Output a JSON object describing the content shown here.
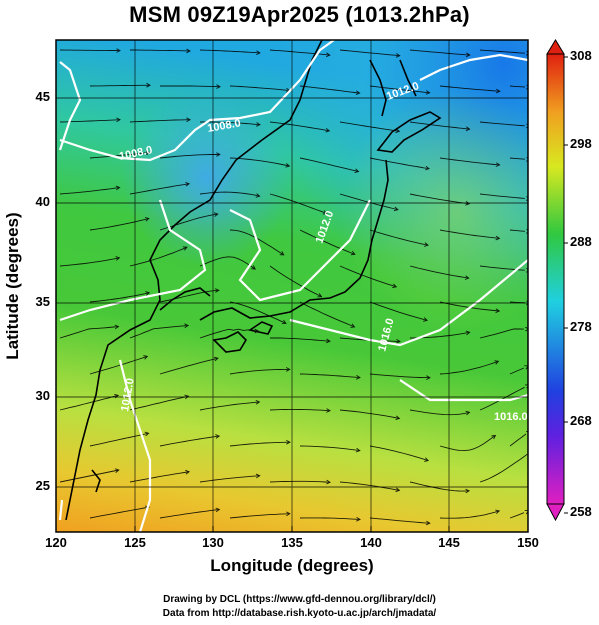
{
  "title": "MSM 09Z19Apr2025 (1013.2hPa)",
  "x_axis": {
    "label": "Longitude (degrees)",
    "ticks": [
      "120",
      "125",
      "130",
      "135",
      "140",
      "145",
      "150"
    ],
    "range": [
      120,
      150
    ]
  },
  "y_axis": {
    "label": "Latitude  (degrees)",
    "ticks": [
      "25",
      "30",
      "35",
      "40",
      "45"
    ],
    "range": [
      22.5,
      47.6
    ]
  },
  "colorbar": {
    "ticks": [
      "308",
      "298",
      "288",
      "278",
      "268",
      "258"
    ],
    "range": [
      258,
      308
    ]
  },
  "contour_labels": [
    "1008.0",
    "1008.0",
    "1012.0",
    "1016.0",
    "1012.0",
    "1016.0",
    "1012.0"
  ],
  "credits": {
    "line1": "Drawing by DCL (https://www.gfd-dennou.org/library/dcl/)",
    "line2": "Data from http://database.rish.kyoto-u.ac.jp/arch/jmadata/"
  },
  "colors": {
    "contour": "#ffffff",
    "coast": "#000000",
    "streamline": "#000000"
  }
}
